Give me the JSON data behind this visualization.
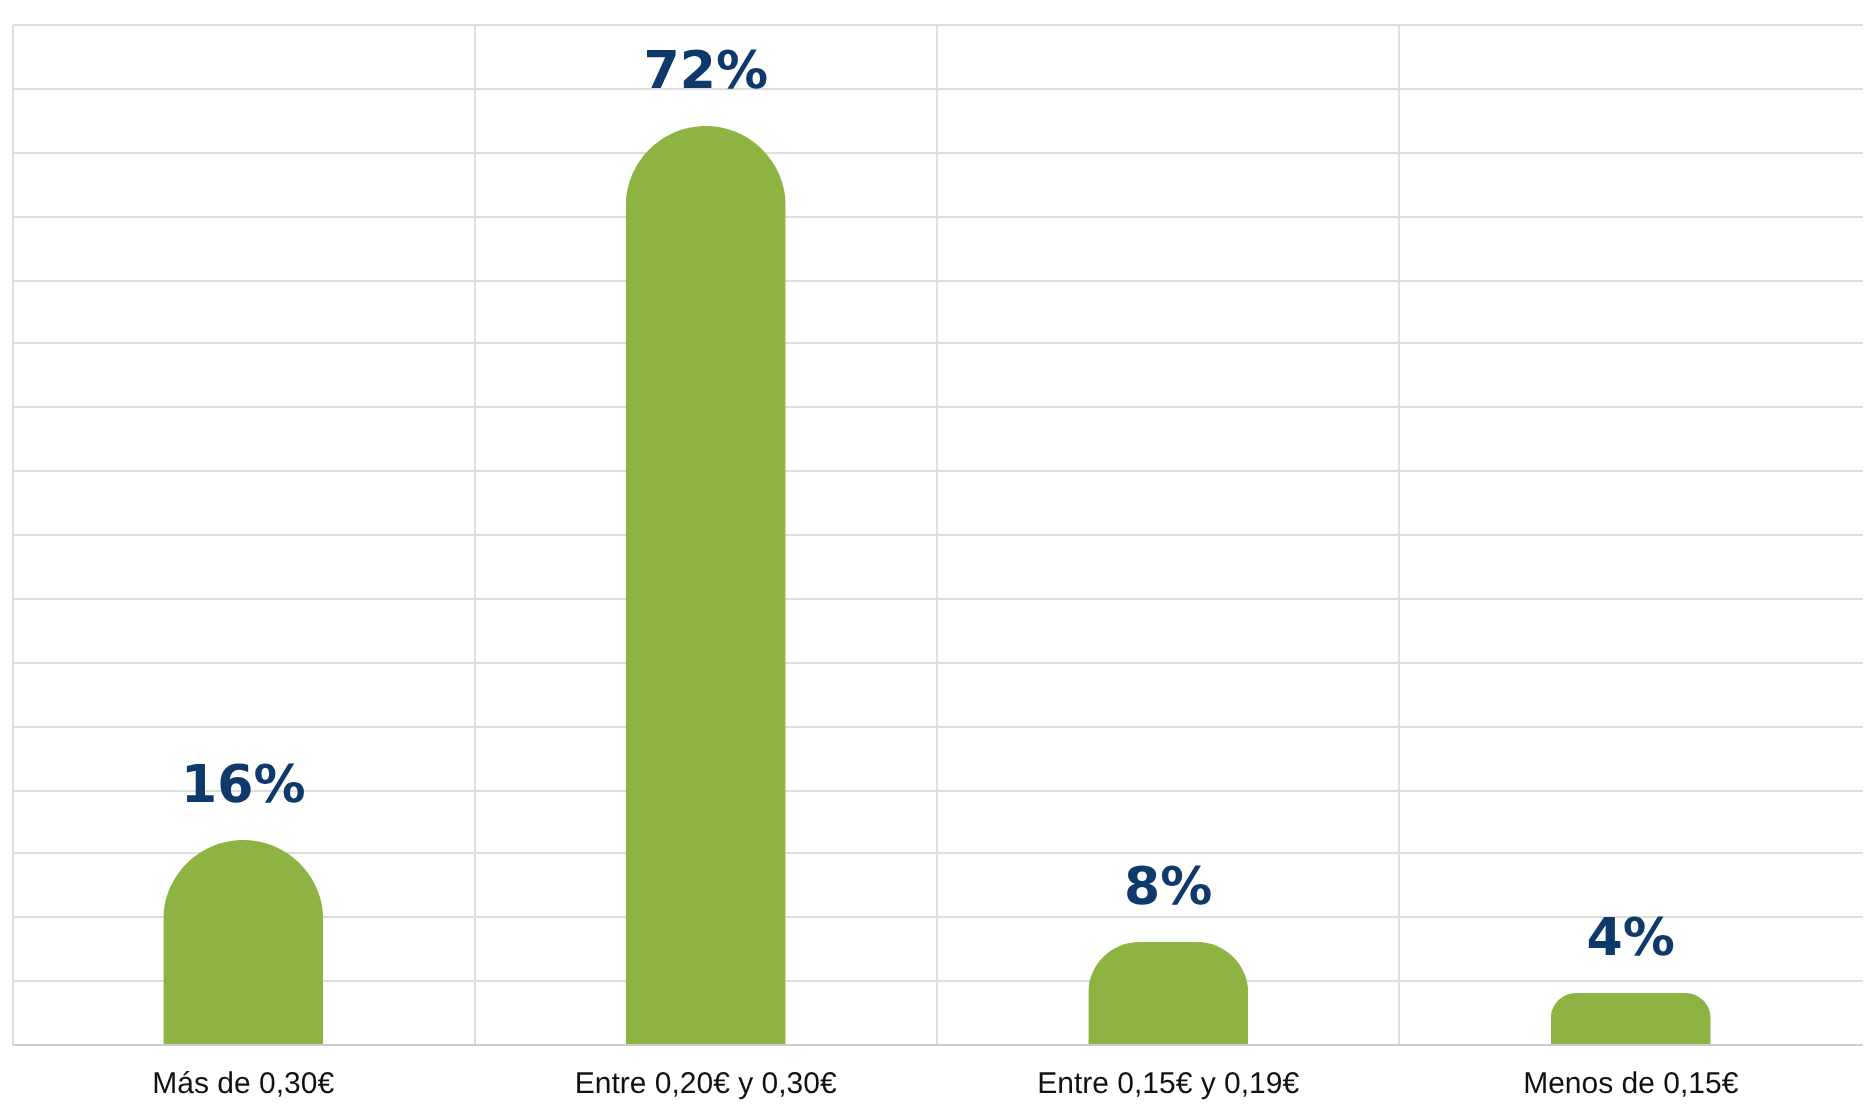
{
  "chart_data": {
    "type": "bar",
    "categories": [
      "Más de 0,30€",
      "Entre 0,20€ y 0,30€",
      "Entre 0,15€ y 0,19€",
      "Menos de 0,15€"
    ],
    "values": [
      16,
      72,
      8,
      4
    ],
    "color": "#8db443",
    "data_labels": true,
    "value_labels": [
      "16%",
      "72%",
      "8%",
      "4%"
    ],
    "ylim": [
      0,
      80
    ],
    "yticks": [
      {
        "value": 0,
        "label": null
      },
      {
        "value": 5,
        "label": null
      },
      {
        "value": 10,
        "label": null
      },
      {
        "value": 15,
        "label": null
      },
      {
        "value": 20,
        "label": null
      },
      {
        "value": 25,
        "label": null
      },
      {
        "value": 30,
        "label": null
      },
      {
        "value": 35,
        "label": null
      },
      {
        "value": 40,
        "label": null
      },
      {
        "value": 45,
        "label": null
      },
      {
        "value": 50,
        "label": null
      },
      {
        "value": 55,
        "label": null
      },
      {
        "value": 60,
        "label": null
      },
      {
        "value": 65,
        "label": null
      },
      {
        "value": 70,
        "label": null
      },
      {
        "value": 75,
        "label": null
      },
      {
        "value": 80,
        "label": null
      }
    ],
    "grid": true,
    "tick_labels": "x"
  }
}
